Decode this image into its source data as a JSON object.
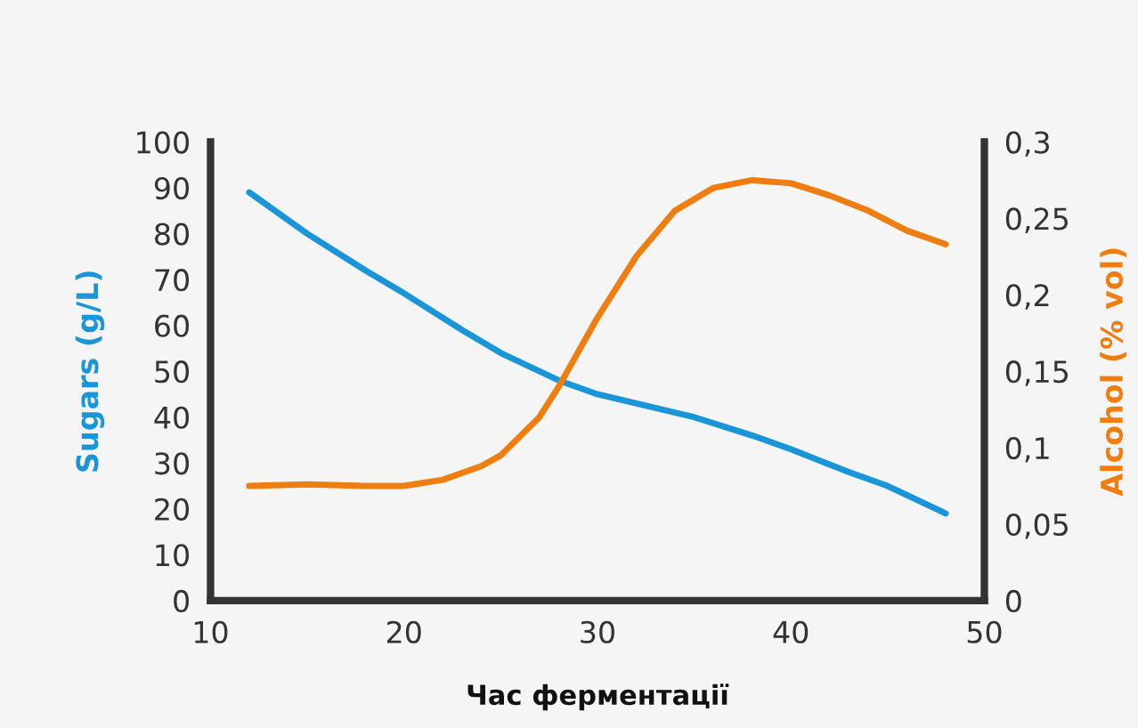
{
  "chart_data": {
    "type": "line",
    "xlabel": "Час ферментації",
    "ylabel": "Sugars (g/L)",
    "y2label": "Alcohol (% vol)",
    "xlim": [
      10,
      50
    ],
    "xticks": [
      10,
      20,
      30,
      40,
      50
    ],
    "ylim": [
      0,
      100
    ],
    "yticks": [
      0,
      10,
      20,
      30,
      40,
      50,
      60,
      70,
      80,
      90,
      100
    ],
    "y2lim": [
      0,
      0.3
    ],
    "y2ticks": [
      {
        "value": 0,
        "label": "0"
      },
      {
        "value": 0.05,
        "label": "0,05"
      },
      {
        "value": 0.1,
        "label": "0,1"
      },
      {
        "value": 0.15,
        "label": "0,15"
      },
      {
        "value": 0.2,
        "label": "0,2"
      },
      {
        "value": 0.25,
        "label": "0,25"
      },
      {
        "value": 0.3,
        "label": "0,3"
      }
    ],
    "grid": false,
    "legend": false,
    "series": [
      {
        "color": "#1a96d8",
        "x": [
          12,
          15,
          18,
          20,
          23,
          25,
          28,
          30,
          33,
          35,
          38,
          40,
          43,
          45,
          48
        ],
        "values": [
          89,
          80,
          72,
          67,
          59,
          54,
          48,
          45,
          42,
          40,
          36,
          33,
          28,
          25,
          19
        ]
      },
      {
        "color": "#f07d0f",
        "axis": "y2",
        "x": [
          12,
          15,
          18,
          20,
          22,
          24,
          25,
          27,
          28,
          30,
          32,
          34,
          36,
          38,
          40,
          42,
          44,
          46,
          48
        ],
        "values": [
          0.075,
          0.076,
          0.075,
          0.075,
          0.079,
          0.088,
          0.095,
          0.12,
          0.14,
          0.185,
          0.225,
          0.255,
          0.27,
          0.275,
          0.273,
          0.265,
          0.255,
          0.242,
          0.233
        ]
      }
    ]
  }
}
